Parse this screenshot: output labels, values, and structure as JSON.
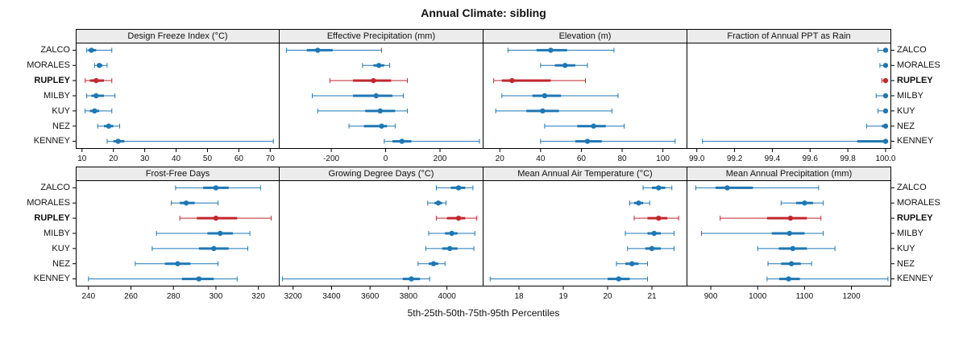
{
  "title": "Annual Climate: sibling",
  "footer": "5th-25th-50th-75th-95th Percentiles",
  "colors": {
    "normal": "#1f77b4",
    "highlight": "#c1272d",
    "strip_bg": "#ececec",
    "border": "#000000"
  },
  "chart_data": {
    "type": "errorbar-trellis",
    "layout": [
      2,
      4
    ],
    "categories": [
      "ZALCO",
      "MORALES",
      "RUPLEY",
      "MILBY",
      "KUY",
      "NEZ",
      "KENNEY"
    ],
    "highlight_category": "RUPLEY",
    "percentiles": [
      5,
      25,
      50,
      75,
      95
    ],
    "panels": [
      {
        "title": "Design Freeze Index (°C)",
        "xlim": [
          8,
          73
        ],
        "ticks": [
          10,
          20,
          30,
          40,
          50,
          60,
          70
        ],
        "tick_labels": [
          "10",
          "20",
          "30",
          "40",
          "50",
          "60",
          "70"
        ],
        "values": [
          [
            11.5,
            12,
            13,
            14.5,
            19.5
          ],
          [
            14,
            15,
            15.5,
            16.5,
            18
          ],
          [
            11,
            12.5,
            14.5,
            17,
            19.5
          ],
          [
            11.5,
            13,
            14.5,
            17,
            20.5
          ],
          [
            11,
            12.5,
            14,
            15.5,
            19.5
          ],
          [
            15,
            17,
            18.5,
            20,
            22
          ],
          [
            18,
            20,
            21.5,
            23.5,
            71
          ]
        ]
      },
      {
        "title": "Effective Precipitation (mm)",
        "xlim": [
          -390,
          360
        ],
        "ticks": [
          -200,
          0,
          200
        ],
        "tick_labels": [
          "-200",
          "0",
          "200"
        ],
        "values": [
          [
            -365,
            -290,
            -250,
            -195,
            -15
          ],
          [
            -85,
            -45,
            -25,
            -5,
            15
          ],
          [
            -205,
            -120,
            -45,
            20,
            80
          ],
          [
            -270,
            -120,
            -35,
            25,
            65
          ],
          [
            -250,
            -75,
            -20,
            35,
            80
          ],
          [
            -135,
            -80,
            -15,
            5,
            35
          ],
          [
            -5,
            25,
            60,
            95,
            345
          ]
        ]
      },
      {
        "title": "Elevation (m)",
        "xlim": [
          12,
          112
        ],
        "ticks": [
          20,
          40,
          60,
          80,
          100
        ],
        "tick_labels": [
          "20",
          "40",
          "60",
          "80",
          "100"
        ],
        "values": [
          [
            24,
            38,
            45,
            53,
            76
          ],
          [
            40,
            47,
            52,
            57,
            63
          ],
          [
            17,
            21,
            26,
            45,
            62
          ],
          [
            21,
            36,
            42,
            50,
            78
          ],
          [
            18,
            33,
            41,
            49,
            75
          ],
          [
            42,
            58,
            66,
            72,
            81
          ],
          [
            40,
            57,
            63,
            70,
            106
          ]
        ]
      },
      {
        "title": "Fraction of Annual PPT as Rain",
        "xlim": [
          98.95,
          100.03
        ],
        "ticks": [
          99.0,
          99.2,
          99.4,
          99.6,
          99.8,
          100.0
        ],
        "tick_labels": [
          "99.0",
          "99.2",
          "99.4",
          "99.6",
          "99.8",
          "100.0"
        ],
        "values": [
          [
            99.96,
            99.99,
            100,
            100,
            100
          ],
          [
            99.97,
            100,
            100,
            100,
            100
          ],
          [
            99.98,
            100,
            100,
            100,
            100
          ],
          [
            99.95,
            99.99,
            100,
            100,
            100
          ],
          [
            99.96,
            99.99,
            100,
            100,
            100
          ],
          [
            99.9,
            99.98,
            100,
            100,
            100
          ],
          [
            99.03,
            99.85,
            100,
            100,
            100
          ]
        ]
      },
      {
        "title": "Frost-Free Days",
        "xlim": [
          234,
          330
        ],
        "ticks": [
          240,
          260,
          280,
          300,
          320
        ],
        "tick_labels": [
          "240",
          "260",
          "280",
          "300",
          "320"
        ],
        "values": [
          [
            281,
            294,
            300,
            306,
            321
          ],
          [
            279,
            283,
            286,
            290,
            301
          ],
          [
            283,
            291,
            300,
            310,
            326
          ],
          [
            272,
            296,
            302,
            308,
            316
          ],
          [
            270,
            292,
            299,
            306,
            315
          ],
          [
            262,
            276,
            282,
            288,
            301
          ],
          [
            240,
            284,
            292,
            299,
            310
          ]
        ]
      },
      {
        "title": "Growing Degree Days (°C)",
        "xlim": [
          3130,
          4190
        ],
        "ticks": [
          3200,
          3400,
          3600,
          3800,
          4000
        ],
        "tick_labels": [
          "3200",
          "3400",
          "3600",
          "3800",
          "4000"
        ],
        "values": [
          [
            3945,
            4020,
            4060,
            4095,
            4135
          ],
          [
            3900,
            3935,
            3955,
            3975,
            3995
          ],
          [
            3945,
            4000,
            4060,
            4095,
            4155
          ],
          [
            3905,
            3990,
            4025,
            4055,
            4145
          ],
          [
            3890,
            3975,
            4015,
            4055,
            4140
          ],
          [
            3850,
            3905,
            3930,
            3955,
            3990
          ],
          [
            3145,
            3770,
            3815,
            3860,
            3910
          ]
        ]
      },
      {
        "title": "Mean Annual Air Temperature (°C)",
        "xlim": [
          17.2,
          21.8
        ],
        "ticks": [
          18,
          19,
          20,
          21
        ],
        "tick_labels": [
          "18",
          "19",
          "20",
          "21"
        ],
        "values": [
          [
            20.8,
            21.0,
            21.15,
            21.3,
            21.45
          ],
          [
            20.5,
            20.6,
            20.7,
            20.8,
            20.95
          ],
          [
            20.6,
            20.9,
            21.15,
            21.35,
            21.6
          ],
          [
            20.4,
            20.9,
            21.05,
            21.2,
            21.5
          ],
          [
            20.45,
            20.85,
            21.0,
            21.2,
            21.5
          ],
          [
            20.2,
            20.4,
            20.55,
            20.7,
            20.9
          ],
          [
            17.35,
            20.0,
            20.25,
            20.5,
            20.9
          ]
        ]
      },
      {
        "title": "Mean Annual Precipitation (mm)",
        "xlim": [
          850,
          1285
        ],
        "ticks": [
          900,
          1000,
          1100,
          1200
        ],
        "tick_labels": [
          "900",
          "1000",
          "1100",
          "1200"
        ],
        "values": [
          [
            868,
            910,
            935,
            990,
            1130
          ],
          [
            1050,
            1082,
            1100,
            1118,
            1140
          ],
          [
            920,
            1020,
            1070,
            1105,
            1135
          ],
          [
            880,
            1030,
            1068,
            1100,
            1140
          ],
          [
            1000,
            1045,
            1075,
            1105,
            1165
          ],
          [
            1022,
            1050,
            1072,
            1092,
            1115
          ],
          [
            1020,
            1046,
            1066,
            1090,
            1278
          ]
        ]
      }
    ]
  }
}
